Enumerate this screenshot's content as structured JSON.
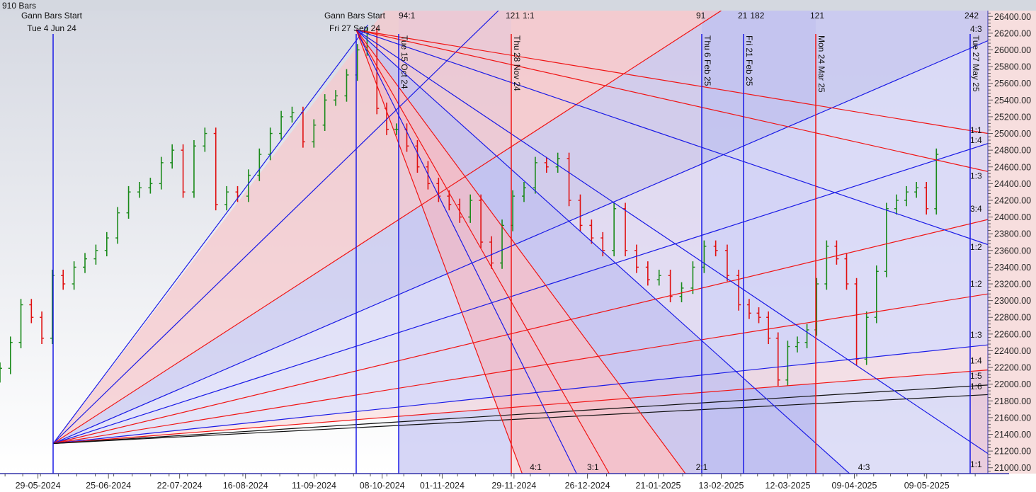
{
  "header": {
    "bar_count_label": "910 Bars"
  },
  "colors": {
    "up_bar": "#1a8a1a",
    "down_bar": "#e01010",
    "blue_line": "#1a1ae6",
    "red_line": "#f01414",
    "black_line": "#111111",
    "axis_bg": "#f7dede"
  },
  "chart_data": {
    "type": "bar",
    "subtype": "ohlc-price-chart-with-gann-fans",
    "ylim": [
      20930,
      26470
    ],
    "xlim": [
      "2024-05-14",
      "2025-06-03"
    ],
    "y_ticks": [
      21000,
      21200,
      21400,
      21600,
      21800,
      22000,
      22200,
      22400,
      22600,
      22800,
      23000,
      23200,
      23400,
      23600,
      23800,
      24000,
      24200,
      24400,
      24600,
      24800,
      25000,
      25200,
      25400,
      25600,
      25800,
      26000,
      26200,
      26400
    ],
    "x_ticks": [
      {
        "date": "2024-05-29",
        "label": "29-05-2024"
      },
      {
        "date": "2024-06-25",
        "label": "25-06-2024"
      },
      {
        "date": "2024-07-22",
        "label": "22-07-2024"
      },
      {
        "date": "2024-08-16",
        "label": "16-08-2024"
      },
      {
        "date": "2024-09-11",
        "label": "11-09-2024"
      },
      {
        "date": "2024-10-08",
        "label": "08-10-2024"
      },
      {
        "date": "2024-11-01",
        "label": "01-11-2024"
      },
      {
        "date": "2024-11-29",
        "label": "29-11-2024"
      },
      {
        "date": "2024-12-26",
        "label": "26-12-2024"
      },
      {
        "date": "2025-01-21",
        "label": "21-01-2025"
      },
      {
        "date": "2025-02-13",
        "label": "13-02-2025"
      },
      {
        "date": "2025-03-12",
        "label": "12-03-2025"
      },
      {
        "date": "2025-04-09",
        "label": "09-04-2025"
      },
      {
        "date": "2025-05-09",
        "label": "09-05-2025"
      }
    ],
    "bars_date_range": [
      "2024-05-14",
      "2025-05-13"
    ],
    "closes": [
      22190,
      22500,
      22950,
      22800,
      22550,
      23300,
      23200,
      23400,
      23500,
      23600,
      23750,
      24050,
      24300,
      24350,
      24400,
      24650,
      24800,
      24300,
      24850,
      25000,
      24150,
      24300,
      24250,
      24500,
      24750,
      25000,
      25200,
      25250,
      24900,
      25100,
      25400,
      25450,
      25700,
      26000,
      26200,
      25300,
      25050,
      25050,
      24850,
      24600,
      24400,
      24250,
      24150,
      24000,
      24200,
      23700,
      23450,
      23900,
      24250,
      24350,
      24650,
      24600,
      24700,
      24200,
      23900,
      23750,
      23600,
      24100,
      23600,
      23400,
      23250,
      23300,
      23050,
      23150,
      23400,
      23650,
      23600,
      23300,
      22950,
      22850,
      22800,
      22550,
      22050,
      22450,
      22500,
      22650,
      23200,
      23650,
      23500,
      23200,
      22300,
      22800,
      23350,
      24100,
      24200,
      24300,
      24350,
      24100,
      24750
    ],
    "gann_starts": [
      {
        "title": "Gann Bars Start",
        "date_label": "Tue 4 Jun 24",
        "date": "2024-06-04",
        "price": 21290
      },
      {
        "title": "Gann Bars Start",
        "date_label": "Fri 27 Sep 24",
        "date": "2024-09-27",
        "price": 26240
      }
    ],
    "fan_lines": [
      {
        "from": [
          "2024-06-04",
          21290
        ],
        "to": [
          "2024-10-02",
          26300
        ],
        "color": "blue"
      },
      {
        "from": [
          "2024-06-04",
          21290
        ],
        "to": [
          "2024-11-23",
          26470
        ],
        "color": "blue"
      },
      {
        "from": [
          "2024-06-04",
          21290
        ],
        "to": [
          "2025-02-13",
          26470
        ],
        "color": "red"
      },
      {
        "from": [
          "2024-06-04",
          21290
        ],
        "to": [
          "2025-06-03",
          26110
        ],
        "color": "blue"
      },
      {
        "from": [
          "2024-06-04",
          21290
        ],
        "to": [
          "2025-06-03",
          24880
        ],
        "color": "blue"
      },
      {
        "from": [
          "2024-06-04",
          21290
        ],
        "to": [
          "2025-06-03",
          23970
        ],
        "color": "red"
      },
      {
        "from": [
          "2024-06-04",
          21290
        ],
        "to": [
          "2025-06-03",
          23080
        ],
        "color": "red"
      },
      {
        "from": [
          "2024-06-04",
          21290
        ],
        "to": [
          "2025-06-03",
          22470
        ],
        "color": "blue"
      },
      {
        "from": [
          "2024-06-04",
          21290
        ],
        "to": [
          "2025-06-03",
          22170
        ],
        "color": "red"
      },
      {
        "from": [
          "2024-06-04",
          21290
        ],
        "to": [
          "2025-06-03",
          21990
        ],
        "color": "black"
      },
      {
        "from": [
          "2024-06-04",
          21290
        ],
        "to": [
          "2025-06-03",
          21875
        ],
        "color": "black"
      },
      {
        "from": [
          "2024-09-27",
          26240
        ],
        "to": [
          "2025-06-03",
          25000
        ],
        "color": "red"
      },
      {
        "from": [
          "2024-09-27",
          26240
        ],
        "to": [
          "2025-06-03",
          24545
        ],
        "color": "red"
      },
      {
        "from": [
          "2024-09-27",
          26240
        ],
        "to": [
          "2025-06-03",
          23670
        ],
        "color": "blue"
      },
      {
        "from": [
          "2024-09-27",
          26240
        ],
        "to": [
          "2025-06-03",
          21170
        ],
        "color": "blue"
      },
      {
        "from": [
          "2024-09-27",
          26240
        ],
        "to": [
          "2025-04-07",
          20930
        ],
        "color": "blue"
      },
      {
        "from": [
          "2024-09-27",
          26240
        ],
        "to": [
          "2025-01-31",
          20930
        ],
        "color": "red"
      },
      {
        "from": [
          "2024-09-27",
          26240
        ],
        "to": [
          "2025-01-03",
          20930
        ],
        "color": "red"
      },
      {
        "from": [
          "2024-09-27",
          26240
        ],
        "to": [
          "2024-12-22",
          20930
        ],
        "color": "blue"
      },
      {
        "from": [
          "2024-09-27",
          26240
        ],
        "to": [
          "2024-12-02",
          20930
        ],
        "color": "red"
      }
    ],
    "shaded_regions": [
      {
        "points": [
          [
            "2024-06-04",
            21290
          ],
          [
            "2024-10-09",
            26470
          ],
          [
            "2025-02-13",
            26470
          ]
        ],
        "color": "#f5c8cc"
      },
      {
        "points": [
          [
            "2024-06-04",
            21290
          ],
          [
            "2025-02-13",
            26470
          ],
          [
            "2025-06-03",
            26470
          ],
          [
            "2025-06-03",
            26110
          ]
        ],
        "color": "#c8c8f0"
      },
      {
        "points": [
          [
            "2024-06-04",
            21290
          ],
          [
            "2025-06-03",
            26110
          ],
          [
            "2025-06-03",
            22470
          ]
        ],
        "color": "#dcdcf8"
      },
      {
        "points": [
          [
            "2024-06-04",
            21290
          ],
          [
            "2025-06-03",
            22470
          ],
          [
            "2025-06-03",
            22170
          ]
        ],
        "color": "#fbe0e0"
      },
      {
        "points": [
          [
            "2024-09-27",
            26240
          ],
          [
            "2024-12-02",
            20930
          ],
          [
            "2025-01-31",
            20930
          ]
        ],
        "color": "#f2b8c4"
      },
      {
        "points": [
          [
            "2024-09-27",
            26240
          ],
          [
            "2025-01-31",
            20930
          ],
          [
            "2025-04-07",
            20930
          ]
        ],
        "color": "#c0c0f0"
      }
    ],
    "time_bands": [
      {
        "from": "2024-10-15",
        "to": "2024-11-28",
        "color": "#c4c4f2"
      },
      {
        "from": "2024-11-28",
        "to": "2025-02-06",
        "color": "#f4d0d4"
      },
      {
        "from": "2025-02-06",
        "to": "2025-03-24",
        "color": "#a8a8ec"
      },
      {
        "from": "2025-03-24",
        "to": "2025-05-27",
        "color": "#d0d0f4"
      },
      {
        "from": "2025-05-27",
        "to": "2025-06-03",
        "color": "#e0b8d0"
      }
    ],
    "cycle_lines": [
      {
        "date": "2024-06-04",
        "color": "blue",
        "label": ""
      },
      {
        "date": "2024-09-27",
        "color": "blue",
        "label": ""
      },
      {
        "date": "2024-10-15",
        "color": "blue",
        "label": "Tue 15 Oct 24"
      },
      {
        "date": "2024-11-28",
        "color": "red",
        "label": "Thu 28 Nov 24"
      },
      {
        "date": "2025-02-06",
        "color": "blue",
        "label": "Thu 6 Feb 25"
      },
      {
        "date": "2025-02-21",
        "color": "blue",
        "label": "Fri 21 Feb 25"
      },
      {
        "date": "2025-03-24",
        "color": "red",
        "label": "Mon 24 Mar 25"
      },
      {
        "date": "2025-05-27",
        "color": "blue",
        "label": "Tue 27 May 25"
      }
    ],
    "cycle_counts": [
      {
        "date": "2024-10-15",
        "text": "94:1"
      },
      {
        "date": "2024-11-28",
        "text": "121"
      },
      {
        "date": "2024-11-28",
        "text": "1:1"
      },
      {
        "date": "2025-02-06",
        "text": "91"
      },
      {
        "date": "2025-02-21",
        "text": "21"
      },
      {
        "date": "2025-02-21",
        "text": "182"
      },
      {
        "date": "2025-03-24",
        "text": "121"
      },
      {
        "date": "2025-05-27",
        "text": "242"
      }
    ],
    "ratio_labels_right": [
      {
        "price": 26250,
        "text": "4:3"
      },
      {
        "price": 25040,
        "text": "1:1"
      },
      {
        "price": 24940,
        "text": "1:4"
      },
      {
        "price": 24490,
        "text": "1:3"
      },
      {
        "price": 24100,
        "text": "3:4"
      },
      {
        "price": 23640,
        "text": "1:2"
      },
      {
        "price": 23200,
        "text": "1:2"
      },
      {
        "price": 22590,
        "text": "1:3"
      },
      {
        "price": 22280,
        "text": "1:4"
      },
      {
        "price": 22100,
        "text": "1:5"
      },
      {
        "price": 21970,
        "text": "1:6"
      },
      {
        "price": 21040,
        "text": "1:1"
      }
    ],
    "ratio_labels_bottom": [
      {
        "date": "2024-12-07",
        "text": "4:1"
      },
      {
        "date": "2024-12-28",
        "text": "3:1"
      },
      {
        "date": "2025-02-06",
        "text": "2:1"
      },
      {
        "date": "2025-04-13",
        "text": "4:3"
      }
    ]
  }
}
